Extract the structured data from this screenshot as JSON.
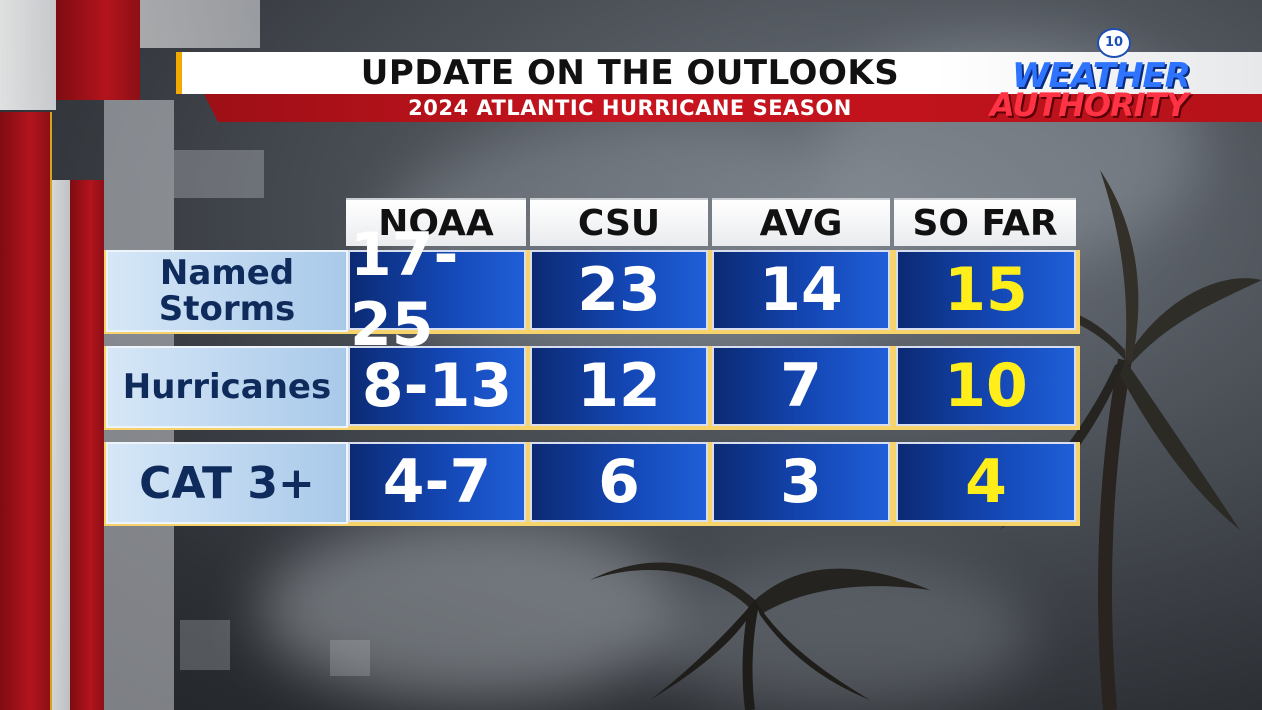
{
  "header": {
    "title": "UPDATE ON THE OUTLOOKS",
    "subtitle": "2024 ATLANTIC HURRICANE SEASON"
  },
  "logo": {
    "badge": "10",
    "line1": "WEATHER",
    "line2": "AUTHORITY"
  },
  "table": {
    "columns": [
      "NOAA",
      "CSU",
      "AVG",
      "SO FAR"
    ],
    "rows": [
      {
        "label": "Named Storms",
        "values": [
          "17-25",
          "23",
          "14",
          "15"
        ]
      },
      {
        "label": "Hurricanes",
        "values": [
          "8-13",
          "12",
          "7",
          "10"
        ]
      },
      {
        "label": "CAT 3+",
        "values": [
          "4-7",
          "6",
          "3",
          "4"
        ]
      }
    ]
  },
  "colors": {
    "header_red": "#c9141e",
    "cell_blue": "#1447b5",
    "so_far_yellow": "#ffee1a",
    "label_blue": "#0f2b5c"
  }
}
